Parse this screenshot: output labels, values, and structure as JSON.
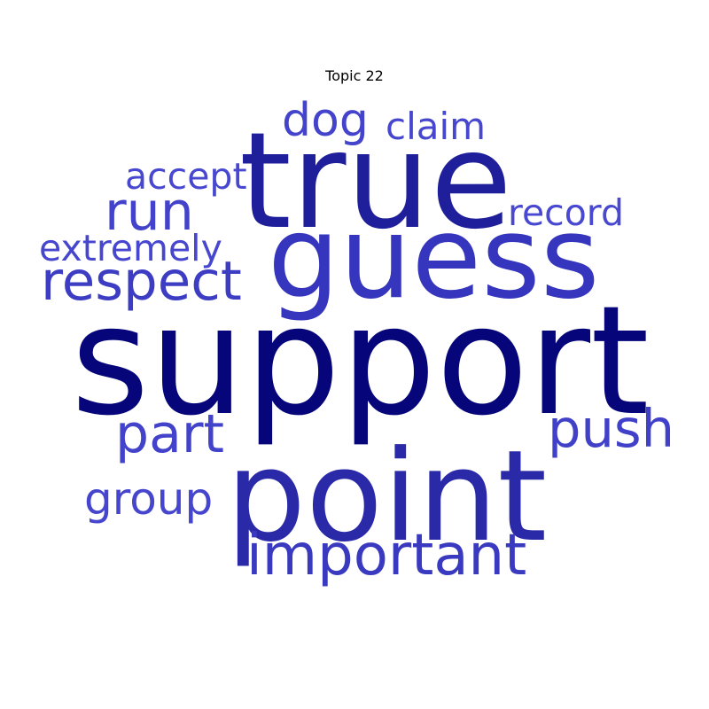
{
  "title": "Topic 22",
  "words": [
    {
      "text": "support",
      "color": "#06067a"
    },
    {
      "text": "true",
      "color": "#1f1f9b"
    },
    {
      "text": "guess",
      "color": "#3535bd"
    },
    {
      "text": "point",
      "color": "#2a2aa8"
    },
    {
      "text": "important",
      "color": "#3a3ac0"
    },
    {
      "text": "respect",
      "color": "#3d3dc4"
    },
    {
      "text": "push",
      "color": "#4040c8"
    },
    {
      "text": "part",
      "color": "#4242ca"
    },
    {
      "text": "run",
      "color": "#4242ca"
    },
    {
      "text": "dog",
      "color": "#4343cb"
    },
    {
      "text": "claim",
      "color": "#4646ce"
    },
    {
      "text": "accept",
      "color": "#4747cf"
    },
    {
      "text": "record",
      "color": "#4848d0"
    },
    {
      "text": "extremely",
      "color": "#4646ce"
    },
    {
      "text": "group",
      "color": "#4545cd"
    }
  ]
}
